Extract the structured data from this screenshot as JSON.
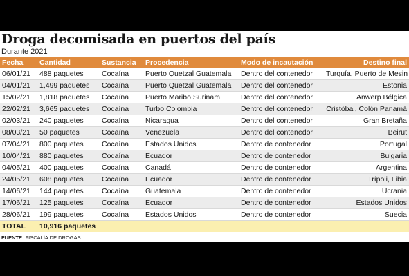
{
  "title": "Droga decomisada en puertos del país",
  "subtitle": "Durante 2021",
  "columns": [
    "Fecha",
    "Cantidad",
    "Sustancia",
    "Procedencia",
    "Modo de incautación",
    "Destino final"
  ],
  "rows": [
    [
      "06/01/21",
      "488 paquetes",
      "Cocaína",
      "Puerto Quetzal Guatemala",
      "Dentro del contenedor",
      "Turquía, Puerto de Mesin"
    ],
    [
      "04/01/21",
      "1,499 paquetes",
      "Cocaína",
      "Puerto Quetzal Guatemala",
      "Dentro del contenedor",
      "Estonia"
    ],
    [
      "15/02/21",
      "1,818 paquetes",
      "Cocaína",
      "Puerto Maribo Surinam",
      "Dentro del contenedor",
      "Anwerp Bélgica"
    ],
    [
      "22/02/21",
      "3,665 paquetes",
      "Cocaína",
      "Turbo Colombia",
      "Dentro del contenedor",
      "Cristóbal, Colón Panamá"
    ],
    [
      "02/03/21",
      "240 paquetes",
      "Cocaína",
      "Nicaragua",
      "Dentro del contenedor",
      "Gran Bretaña"
    ],
    [
      "08/03/21",
      "50 paquetes",
      "Cocaína",
      "Venezuela",
      "Dentro del contenedor",
      "Beirut"
    ],
    [
      "07/04/21",
      "800 paquetes",
      "Cocaína",
      "Estados Unidos",
      "Dentro de contenedor",
      "Portugal"
    ],
    [
      "10/04/21",
      "880 paquetes",
      "Cocaína",
      "Ecuador",
      "Dentro de contenedor",
      "Bulgaria"
    ],
    [
      "04/05/21",
      "400 paquetes",
      "Cocaína",
      "Canadá",
      "Dentro de contenedor",
      "Argentina"
    ],
    [
      "24/05/21",
      "608 paquetes",
      "Cocaína",
      "Ecuador",
      "Dentro de contenedor",
      "Trípoli, Libia"
    ],
    [
      "14/06/21",
      "144 paquetes",
      "Cocaína",
      "Guatemala",
      "Dentro de contenedor",
      "Ucrania"
    ],
    [
      "17/06/21",
      "125 paquetes",
      "Cocaína",
      "Ecuador",
      "Dentro de contenedor",
      "Estados Unidos"
    ],
    [
      "28/06/21",
      "199 paquetes",
      "Cocaína",
      "Estados Unidos",
      "Dentro de contenedor",
      "Suecia"
    ]
  ],
  "total": {
    "label": "TOTAL",
    "value": "10,916 paquetes"
  },
  "source": {
    "label": "FUENTE:",
    "text": "FISCALÍA DE DROGAS"
  },
  "colors": {
    "header": "#e08a3c",
    "stripe": "#ececec",
    "total": "#fbefb0",
    "background": "#000000"
  }
}
